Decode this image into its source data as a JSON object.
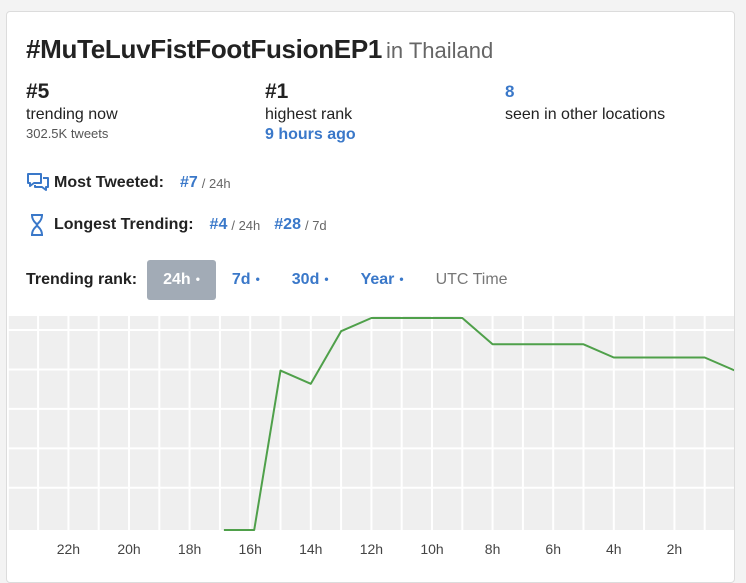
{
  "title": "#MuTeLuvFistFootFusionEP1",
  "location": "in Thailand",
  "stats": {
    "current": {
      "value": "#5",
      "label": "trending now",
      "sub": "302.5K tweets"
    },
    "highest": {
      "value": "#1",
      "label": "highest rank",
      "sub": "9 hours ago"
    },
    "locations": {
      "value": "8",
      "label": "seen in other locations"
    }
  },
  "most_tweeted": {
    "label": "Most Tweeted:",
    "rank": "#7",
    "period": "/ 24h"
  },
  "longest_trending": {
    "label": "Longest Trending:",
    "rank1": "#4",
    "period1": "/ 24h",
    "rank2": "#28",
    "period2": "/ 7d"
  },
  "tabs": {
    "label": "Trending rank:",
    "items": [
      "24h",
      "7d",
      "30d",
      "Year"
    ],
    "dot": "•",
    "active": "24h",
    "utc": "UTC Time"
  },
  "colors": {
    "accent": "#3a78c9",
    "line": "#4fa04a",
    "active_tab": "#a2abb6"
  },
  "chart_data": {
    "type": "line",
    "x_tick_labels": [
      "22h",
      "20h",
      "18h",
      "16h",
      "14h",
      "12h",
      "10h",
      "8h",
      "6h",
      "4h",
      "2h"
    ],
    "x_unit": "hours ago",
    "y_meaning": "trending rank (1 = top)",
    "y_inverted": true,
    "grid": true,
    "series": [
      {
        "x": [
          17,
          16,
          15,
          14,
          13,
          12,
          11,
          10,
          9,
          8,
          7,
          6,
          5,
          4,
          3,
          2,
          1,
          0
        ],
        "y": [
          50,
          20,
          5,
          6,
          2,
          1,
          1,
          1,
          1,
          3,
          3,
          3,
          3,
          4,
          4,
          4,
          4,
          5
        ]
      }
    ]
  }
}
